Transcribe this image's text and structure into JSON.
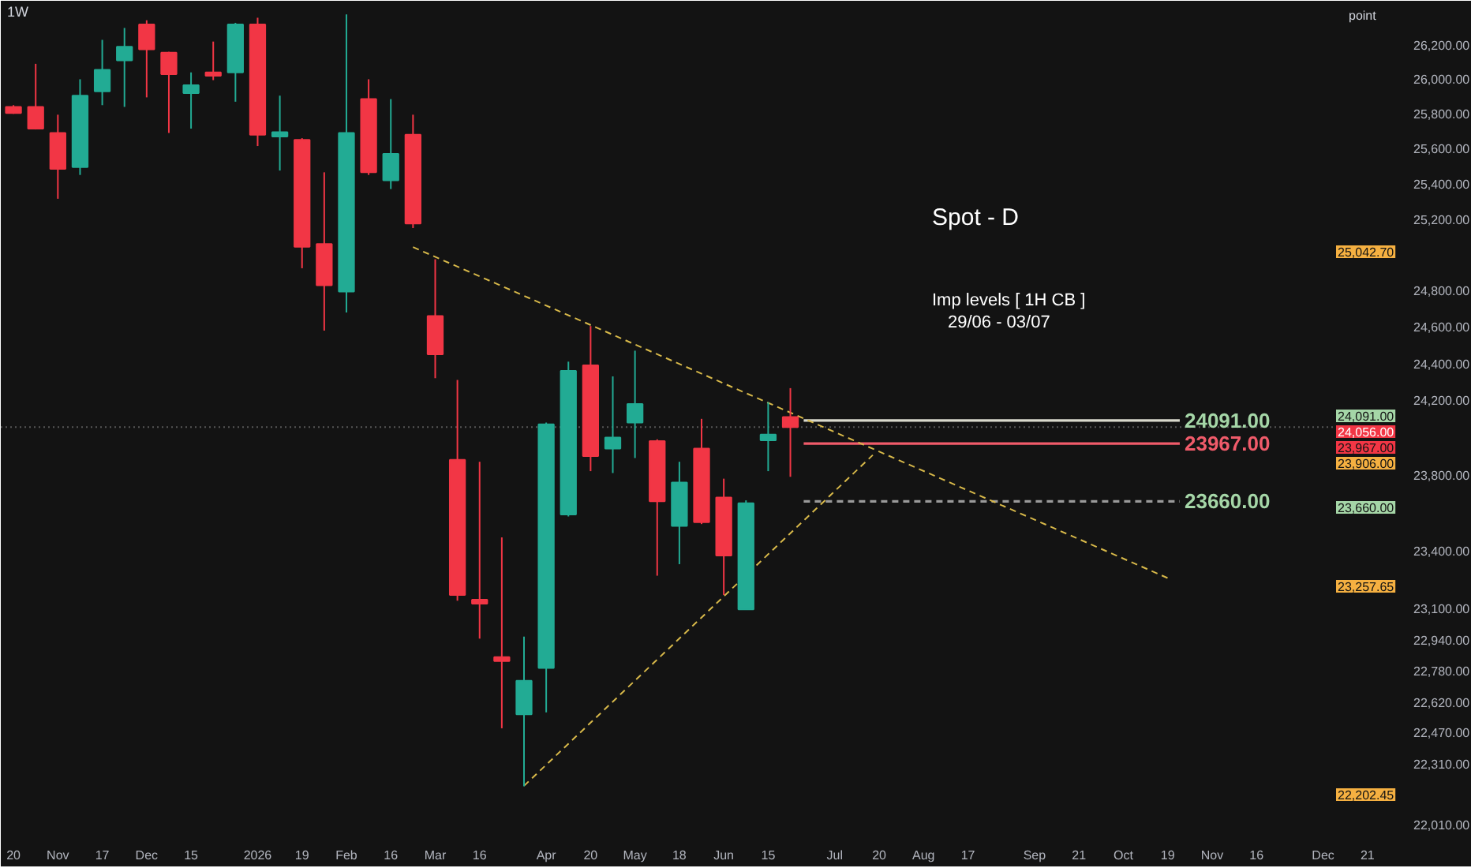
{
  "chart_data": {
    "type": "candlestick",
    "title": "1W",
    "x": [
      "2025-10-20",
      "2025-10-27",
      "2025-11-03",
      "2025-11-10",
      "2025-11-17",
      "2025-11-24",
      "2025-12-01",
      "2025-12-08",
      "2025-12-15",
      "2025-12-22",
      "2025-12-29",
      "2026-01-05",
      "2026-01-12",
      "2026-01-19",
      "2026-01-26",
      "2026-02-02",
      "2026-02-09",
      "2026-02-16",
      "2026-02-23",
      "2026-03-02",
      "2026-03-09",
      "2026-03-16",
      "2026-03-23",
      "2026-03-30",
      "2026-04-06",
      "2026-04-13",
      "2026-04-20",
      "2026-04-27",
      "2026-05-04",
      "2026-05-11",
      "2026-05-18",
      "2026-05-25",
      "2026-06-01",
      "2026-06-08",
      "2026-06-15",
      "2026-06-22"
    ],
    "ohlc": [
      [
        25840,
        25850,
        25800,
        25805
      ],
      [
        25840,
        26090,
        25710,
        25715
      ],
      [
        25690,
        25795,
        25315,
        25485
      ],
      [
        25495,
        26000,
        25450,
        25905
      ],
      [
        25930,
        26230,
        25850,
        26055
      ],
      [
        26110,
        26300,
        25840,
        26190
      ],
      [
        26320,
        26345,
        25895,
        26175
      ],
      [
        26155,
        26160,
        25690,
        26030
      ],
      [
        25920,
        26040,
        25715,
        25965
      ],
      [
        26040,
        26220,
        25995,
        26020
      ],
      [
        26040,
        26330,
        25870,
        26320
      ],
      [
        26320,
        26360,
        25615,
        25680
      ],
      [
        25670,
        25905,
        25475,
        25695
      ],
      [
        25650,
        25660,
        24925,
        25045
      ],
      [
        25060,
        25465,
        24580,
        24830
      ],
      [
        24795,
        26380,
        24680,
        25690
      ],
      [
        25885,
        26000,
        25450,
        25465
      ],
      [
        25420,
        25885,
        25370,
        25570
      ],
      [
        25680,
        25795,
        25150,
        25175
      ],
      [
        24660,
        24975,
        24320,
        24450
      ],
      [
        23880,
        24310,
        23140,
        23170
      ],
      [
        23145,
        23870,
        22945,
        23125
      ],
      [
        22850,
        23470,
        22490,
        22830
      ],
      [
        22560,
        22955,
        22200,
        22730
      ],
      [
        22795,
        24080,
        22570,
        24070
      ],
      [
        23590,
        24410,
        23580,
        24360
      ],
      [
        24390,
        24605,
        23820,
        23900
      ],
      [
        23940,
        24330,
        23810,
        24000
      ],
      [
        24080,
        24470,
        23890,
        24180
      ],
      [
        23980,
        23990,
        23270,
        23660
      ],
      [
        23530,
        23870,
        23330,
        23760
      ],
      [
        23940,
        24100,
        23540,
        23550
      ],
      [
        23680,
        23780,
        23170,
        23375
      ],
      [
        23095,
        23665,
        23095,
        23650
      ],
      [
        23985,
        24190,
        23820,
        24015
      ],
      [
        24110,
        24266,
        23790,
        24056
      ]
    ],
    "colors": [
      "#f23645",
      "#f23645",
      "#f23645",
      "#22ab94",
      "#22ab94",
      "#22ab94",
      "#f23645",
      "#f23645",
      "#22ab94",
      "#f23645",
      "#22ab94",
      "#f23645",
      "#22ab94",
      "#f23645",
      "#f23645",
      "#22ab94",
      "#f23645",
      "#22ab94",
      "#f23645",
      "#f23645",
      "#f23645",
      "#f23645",
      "#f23645",
      "#22ab94",
      "#22ab94",
      "#22ab94",
      "#f23645",
      "#22ab94",
      "#22ab94",
      "#f23645",
      "#22ab94",
      "#f23645",
      "#f23645",
      "#22ab94",
      "#22ab94",
      "#f23645"
    ],
    "series": [
      {
        "type": "line",
        "x": [
          "2026-02-23",
          "2026-10-19"
        ],
        "values": [
          25042.7,
          23257.65
        ],
        "color": "#d8b94a",
        "line_style": "dashed"
      },
      {
        "type": "line",
        "x": [
          "2026-03-30",
          "2026-07-18"
        ],
        "values": [
          22202.45,
          23906
        ],
        "color": "#d8b94a",
        "line_style": "dashed"
      }
    ],
    "ref_lines": [
      {
        "axis": "y",
        "value": 24091,
        "label": "24091.00",
        "color": "#d9d9cc",
        "line_style": "solid"
      },
      {
        "axis": "y",
        "value": 23967,
        "label": "23967.00",
        "color": "#f05b6a",
        "line_style": "solid"
      },
      {
        "axis": "y",
        "value": 23660,
        "label": "23660.00",
        "color": "#9a9a9a",
        "line_style": "dashed"
      },
      {
        "axis": "y",
        "value": 24056,
        "label": "24,056.00",
        "color": "#555555",
        "line_style": "dotted"
      }
    ],
    "annotations": [
      "Spot - D",
      "Imp levels [ 1H CB ]",
      "29/06 - 03/07",
      "point",
      "25,042.70",
      "24,091.00",
      "23,967.00",
      "23,906.00",
      "23,660.00",
      "23,257.65",
      "22,202.45"
    ],
    "xlim": [
      "2025-10-16",
      "2026-12-30"
    ],
    "xticks": [
      {
        "value": "2025-10-20",
        "label": "20"
      },
      {
        "value": "2025-11-03",
        "label": "Nov"
      },
      {
        "value": "2025-11-17",
        "label": "17"
      },
      {
        "value": "2025-12-01",
        "label": "Dec"
      },
      {
        "value": "2025-12-15",
        "label": "15"
      },
      {
        "value": "2026-01-05",
        "label": "2026"
      },
      {
        "value": "2026-01-19",
        "label": "19"
      },
      {
        "value": "2026-02-02",
        "label": "Feb"
      },
      {
        "value": "2026-02-16",
        "label": "16"
      },
      {
        "value": "2026-03-02",
        "label": "Mar"
      },
      {
        "value": "2026-03-16",
        "label": "16"
      },
      {
        "value": "2026-04-06",
        "label": "Apr"
      },
      {
        "value": "2026-04-20",
        "label": "20"
      },
      {
        "value": "2026-05-04",
        "label": "May"
      },
      {
        "value": "2026-05-18",
        "label": "18"
      },
      {
        "value": "2026-06-01",
        "label": "Jun"
      },
      {
        "value": "2026-06-15",
        "label": "15"
      },
      {
        "value": "2026-07-06",
        "label": "Jul"
      },
      {
        "value": "2026-07-20",
        "label": "20"
      },
      {
        "value": "2026-08-03",
        "label": "Aug"
      },
      {
        "value": "2026-08-17",
        "label": "17"
      },
      {
        "value": "2026-09-07",
        "label": "Sep"
      },
      {
        "value": "2026-09-21",
        "label": "21"
      },
      {
        "value": "2026-10-05",
        "label": "Oct"
      },
      {
        "value": "2026-10-19",
        "label": "19"
      },
      {
        "value": "2026-11-02",
        "label": "Nov"
      },
      {
        "value": "2026-11-16",
        "label": "16"
      },
      {
        "value": "2026-12-07",
        "label": "Dec"
      },
      {
        "value": "2026-12-21",
        "label": "21"
      }
    ],
    "ylim": [
      21980,
      26460
    ],
    "yticks": [
      {
        "value": 26200,
        "label": "26,200.00"
      },
      {
        "value": 26000,
        "label": "26,000.00"
      },
      {
        "value": 25800,
        "label": "25,800.00"
      },
      {
        "value": 25600,
        "label": "25,600.00"
      },
      {
        "value": 25400,
        "label": "25,400.00"
      },
      {
        "value": 25200,
        "label": "25,200.00"
      },
      {
        "value": 24800,
        "label": "24,800.00"
      },
      {
        "value": 24600,
        "label": "24,600.00"
      },
      {
        "value": 24400,
        "label": "24,400.00"
      },
      {
        "value": 24200,
        "label": "24,200.00"
      },
      {
        "value": 23800,
        "label": "23,800.00"
      },
      {
        "value": 23400,
        "label": "23,400.00"
      },
      {
        "value": 23100,
        "label": "23,100.00"
      },
      {
        "value": 22940,
        "label": "22,940.00"
      },
      {
        "value": 22780,
        "label": "22,780.00"
      },
      {
        "value": 22620,
        "label": "22,620.00"
      },
      {
        "value": 22470,
        "label": "22,470.00"
      },
      {
        "value": 22310,
        "label": "22,310.00"
      },
      {
        "value": 22010,
        "label": "22,010.00"
      }
    ],
    "log": true,
    "grid": false
  }
}
